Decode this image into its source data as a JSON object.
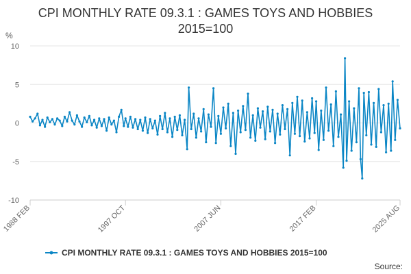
{
  "chart_data": {
    "type": "line",
    "title_line1": "CPI MONTHLY RATE 09.3.1 : GAMES TOYS AND HOBBIES",
    "title_line2": "2015=100",
    "ylabel": "%",
    "ylim": [
      -10,
      10
    ],
    "yticks": [
      -10,
      -5,
      0,
      5,
      10
    ],
    "x_start": "1988-02",
    "x_end": "2025-08",
    "xtick_labels": [
      "1988 FEB",
      "1997 OCT",
      "2007 JUN",
      "2017 FEB",
      "2025 AUG"
    ],
    "xtick_dates": [
      "1988-02",
      "1997-10",
      "2007-06",
      "2017-02",
      "2025-08"
    ],
    "grid": true,
    "legend_position": "bottom",
    "color": "#0b86c5",
    "series": [
      {
        "name": "CPI MONTHLY RATE 09.3.1 : GAMES TOYS AND HOBBIES 2015=100",
        "points": [
          [
            "1988-02",
            0.8
          ],
          [
            "1988-05",
            0.2
          ],
          [
            "1988-08",
            0.6
          ],
          [
            "1988-11",
            1.2
          ],
          [
            "1989-02",
            -0.3
          ],
          [
            "1989-05",
            0.4
          ],
          [
            "1989-08",
            -0.5
          ],
          [
            "1989-11",
            0.7
          ],
          [
            "1990-02",
            0.1
          ],
          [
            "1990-05",
            0.5
          ],
          [
            "1990-08",
            -0.2
          ],
          [
            "1990-11",
            0.6
          ],
          [
            "1991-02",
            0.3
          ],
          [
            "1991-05",
            -0.4
          ],
          [
            "1991-08",
            0.8
          ],
          [
            "1991-11",
            0.2
          ],
          [
            "1992-02",
            1.4
          ],
          [
            "1992-05",
            0.3
          ],
          [
            "1992-08",
            -0.2
          ],
          [
            "1992-11",
            1.0
          ],
          [
            "1993-02",
            0.2
          ],
          [
            "1993-05",
            -0.5
          ],
          [
            "1993-08",
            0.7
          ],
          [
            "1993-11",
            0.1
          ],
          [
            "1994-02",
            0.9
          ],
          [
            "1994-05",
            -0.3
          ],
          [
            "1994-08",
            0.4
          ],
          [
            "1994-11",
            -0.6
          ],
          [
            "1995-02",
            0.6
          ],
          [
            "1995-05",
            -0.4
          ],
          [
            "1995-08",
            0.5
          ],
          [
            "1995-11",
            -1.0
          ],
          [
            "1996-02",
            0.7
          ],
          [
            "1996-05",
            -0.2
          ],
          [
            "1996-08",
            0.3
          ],
          [
            "1996-11",
            -1.2
          ],
          [
            "1997-02",
            0.8
          ],
          [
            "1997-05",
            1.7
          ],
          [
            "1997-08",
            -0.4
          ],
          [
            "1997-10",
            0.6
          ],
          [
            "1998-01",
            -0.5
          ],
          [
            "1998-04",
            0.8
          ],
          [
            "1998-07",
            -0.6
          ],
          [
            "1998-10",
            0.5
          ],
          [
            "1999-01",
            -0.8
          ],
          [
            "1999-04",
            0.4
          ],
          [
            "1999-07",
            -1.0
          ],
          [
            "1999-10",
            0.7
          ],
          [
            "2000-01",
            -1.3
          ],
          [
            "2000-04",
            0.5
          ],
          [
            "2000-07",
            -0.7
          ],
          [
            "2000-10",
            0.3
          ],
          [
            "2001-01",
            -1.5
          ],
          [
            "2001-04",
            0.9
          ],
          [
            "2001-07",
            -0.8
          ],
          [
            "2001-10",
            1.3
          ],
          [
            "2002-01",
            -1.2
          ],
          [
            "2002-04",
            0.6
          ],
          [
            "2002-07",
            -1.8
          ],
          [
            "2002-10",
            0.8
          ],
          [
            "2003-01",
            -0.9
          ],
          [
            "2003-04",
            1.0
          ],
          [
            "2003-07",
            -1.6
          ],
          [
            "2003-10",
            0.4
          ],
          [
            "2004-01",
            -3.4
          ],
          [
            "2004-03",
            4.6
          ],
          [
            "2004-06",
            -0.8
          ],
          [
            "2004-09",
            1.2
          ],
          [
            "2004-12",
            -1.9
          ],
          [
            "2005-03",
            0.6
          ],
          [
            "2005-06",
            -1.1
          ],
          [
            "2005-09",
            1.8
          ],
          [
            "2005-12",
            -2.5
          ],
          [
            "2006-03",
            1.1
          ],
          [
            "2006-06",
            -0.5
          ],
          [
            "2006-09",
            4.5
          ],
          [
            "2006-12",
            -2.6
          ],
          [
            "2007-03",
            0.9
          ],
          [
            "2007-06",
            -1.4
          ],
          [
            "2007-09",
            2.0
          ],
          [
            "2007-12",
            -0.7
          ],
          [
            "2008-03",
            2.5
          ],
          [
            "2008-06",
            -3.0
          ],
          [
            "2008-09",
            1.3
          ],
          [
            "2008-12",
            -4.0
          ],
          [
            "2009-03",
            1.6
          ],
          [
            "2009-06",
            -1.2
          ],
          [
            "2009-09",
            2.2
          ],
          [
            "2009-12",
            -0.9
          ],
          [
            "2010-03",
            3.8
          ],
          [
            "2010-06",
            -1.9
          ],
          [
            "2010-09",
            1.0
          ],
          [
            "2010-12",
            -2.3
          ],
          [
            "2011-03",
            1.9
          ],
          [
            "2011-06",
            -0.6
          ],
          [
            "2011-09",
            1.5
          ],
          [
            "2011-12",
            -2.1
          ],
          [
            "2012-03",
            2.1
          ],
          [
            "2012-06",
            -1.1
          ],
          [
            "2012-09",
            1.7
          ],
          [
            "2012-12",
            -2.6
          ],
          [
            "2013-03",
            1.2
          ],
          [
            "2013-06",
            -1.5
          ],
          [
            "2013-09",
            2.3
          ],
          [
            "2013-12",
            -0.8
          ],
          [
            "2014-03",
            1.8
          ],
          [
            "2014-06",
            -4.2
          ],
          [
            "2014-09",
            2.6
          ],
          [
            "2014-12",
            -1.4
          ],
          [
            "2015-03",
            3.4
          ],
          [
            "2015-06",
            -1.7
          ],
          [
            "2015-09",
            2.9
          ],
          [
            "2015-12",
            -2.4
          ],
          [
            "2016-03",
            1.4
          ],
          [
            "2016-06",
            -2.0
          ],
          [
            "2016-09",
            3.2
          ],
          [
            "2016-12",
            -1.3
          ],
          [
            "2017-02",
            2.8
          ],
          [
            "2017-05",
            -3.5
          ],
          [
            "2017-08",
            1.6
          ],
          [
            "2017-11",
            -2.2
          ],
          [
            "2018-02",
            4.6
          ],
          [
            "2018-05",
            -1.0
          ],
          [
            "2018-08",
            2.4
          ],
          [
            "2018-11",
            -3.0
          ],
          [
            "2019-02",
            4.1
          ],
          [
            "2019-05",
            -1.8
          ],
          [
            "2019-08",
            1.1
          ],
          [
            "2019-11",
            -5.8
          ],
          [
            "2020-01",
            8.4
          ],
          [
            "2020-03",
            -4.9
          ],
          [
            "2020-06",
            2.8
          ],
          [
            "2020-09",
            -3.6
          ],
          [
            "2020-12",
            1.9
          ],
          [
            "2021-03",
            -2.5
          ],
          [
            "2021-06",
            4.5
          ],
          [
            "2021-08",
            -4.7
          ],
          [
            "2021-10",
            -7.2
          ],
          [
            "2021-12",
            3.9
          ],
          [
            "2022-03",
            -1.6
          ],
          [
            "2022-06",
            4.0
          ],
          [
            "2022-09",
            -2.8
          ],
          [
            "2022-12",
            2.6
          ],
          [
            "2023-03",
            -3.1
          ],
          [
            "2023-06",
            4.4
          ],
          [
            "2023-09",
            -1.2
          ],
          [
            "2023-12",
            2.3
          ],
          [
            "2024-03",
            -3.8
          ],
          [
            "2024-06",
            2.5
          ],
          [
            "2024-09",
            -3.6
          ],
          [
            "2024-11",
            5.4
          ],
          [
            "2025-02",
            -2.2
          ],
          [
            "2025-05",
            3.0
          ],
          [
            "2025-08",
            -0.7
          ]
        ]
      }
    ]
  },
  "legend": {
    "label": "CPI MONTHLY RATE 09.3.1 : GAMES TOYS AND HOBBIES 2015=100"
  },
  "source": "Source:"
}
